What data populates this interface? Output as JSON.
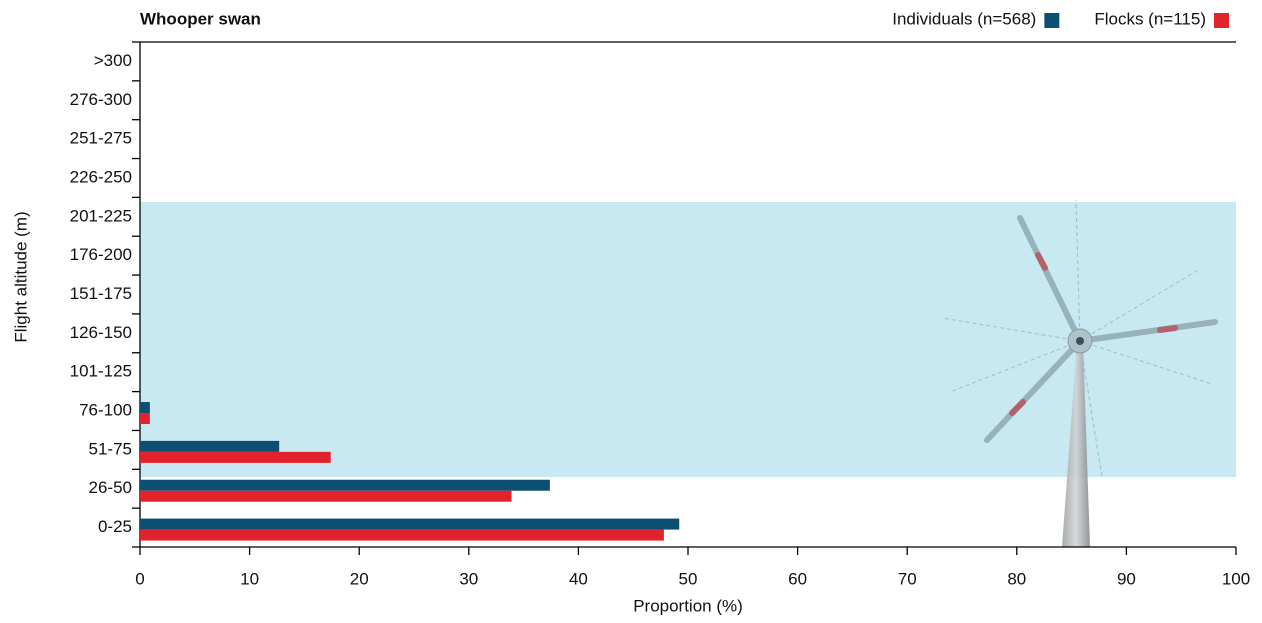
{
  "chart_data": {
    "type": "barh",
    "title": "Whooper swan",
    "xlabel": "Proportion (%)",
    "ylabel": "Flight altitude (m)",
    "categories": [
      "0-25",
      "26-50",
      "51-75",
      "76-100",
      "101-125",
      "126-150",
      "151-175",
      "176-200",
      "201-225",
      "226-250",
      "251-275",
      "276-300",
      ">300"
    ],
    "series": [
      {
        "name": "Individuals (n=568)",
        "color": "#0d4f73",
        "values": [
          49.2,
          37.4,
          12.7,
          0.9,
          0,
          0,
          0,
          0,
          0,
          0,
          0,
          0,
          0
        ]
      },
      {
        "name": "Flocks (n=115)",
        "color": "#e3232c",
        "values": [
          47.8,
          33.9,
          17.4,
          0.9,
          0,
          0,
          0,
          0,
          0,
          0,
          0,
          0,
          0
        ]
      }
    ],
    "xlim": [
      0,
      100
    ],
    "xticks": [
      0,
      10,
      20,
      30,
      40,
      50,
      60,
      70,
      80,
      90,
      100
    ],
    "legend": "top-right"
  }
}
